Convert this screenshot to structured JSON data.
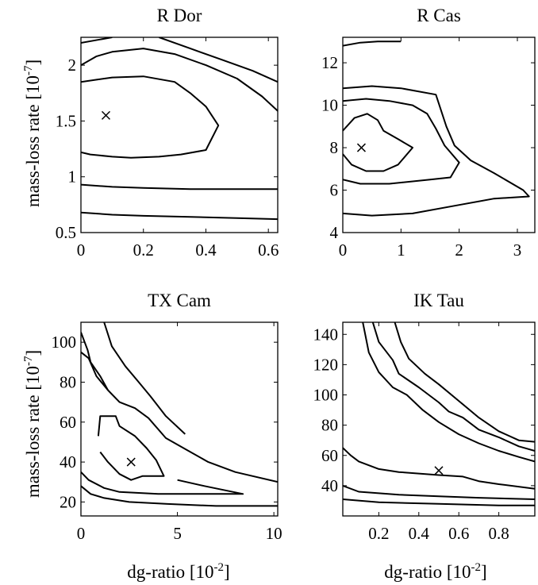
{
  "figure": {
    "ylabel_text": "mass-loss rate [10",
    "ylabel_exp": "-7",
    "ylabel_close": "]",
    "xlabel_text": "dg-ratio [10",
    "xlabel_exp": "-2",
    "xlabel_close": "]"
  },
  "chart_data": [
    {
      "type": "contour",
      "title": "R Dor",
      "xlim": [
        0,
        0.63
      ],
      "ylim": [
        0.5,
        2.25
      ],
      "xticks": [
        0,
        0.2,
        0.4,
        0.6
      ],
      "xtick_labels": [
        "0",
        "0.2",
        "0.4",
        "0.6"
      ],
      "yticks": [
        0.5,
        1,
        1.5,
        2
      ],
      "ytick_labels": [
        "0.5",
        "1",
        "1.5",
        "2"
      ],
      "best_fit": {
        "x": 0.08,
        "y": 1.55
      },
      "contours": [
        [
          [
            0.0,
            1.22
          ],
          [
            0.03,
            1.2
          ],
          [
            0.1,
            1.18
          ],
          [
            0.16,
            1.17
          ],
          [
            0.25,
            1.18
          ],
          [
            0.32,
            1.2
          ],
          [
            0.4,
            1.24
          ],
          [
            0.44,
            1.46
          ],
          [
            0.4,
            1.63
          ],
          [
            0.35,
            1.75
          ],
          [
            0.3,
            1.85
          ],
          [
            0.2,
            1.9
          ],
          [
            0.1,
            1.89
          ],
          [
            0.05,
            1.87
          ],
          [
            0.0,
            1.85
          ]
        ],
        [
          [
            0.0,
            2.0
          ],
          [
            0.05,
            2.08
          ],
          [
            0.1,
            2.12
          ],
          [
            0.2,
            2.15
          ],
          [
            0.3,
            2.1
          ],
          [
            0.4,
            2.0
          ],
          [
            0.5,
            1.88
          ],
          [
            0.58,
            1.72
          ],
          [
            0.63,
            1.59
          ]
        ],
        [
          [
            0.0,
            2.2
          ],
          [
            0.06,
            2.23
          ],
          [
            0.1,
            2.25
          ]
        ],
        [
          [
            0.25,
            2.25
          ],
          [
            0.35,
            2.15
          ],
          [
            0.45,
            2.05
          ],
          [
            0.55,
            1.95
          ],
          [
            0.63,
            1.85
          ]
        ],
        [
          [
            0.0,
            0.93
          ],
          [
            0.1,
            0.91
          ],
          [
            0.2,
            0.9
          ],
          [
            0.35,
            0.89
          ],
          [
            0.5,
            0.89
          ],
          [
            0.63,
            0.89
          ]
        ],
        [
          [
            0.0,
            0.68
          ],
          [
            0.1,
            0.66
          ],
          [
            0.2,
            0.65
          ],
          [
            0.35,
            0.64
          ],
          [
            0.5,
            0.63
          ],
          [
            0.63,
            0.62
          ]
        ]
      ]
    },
    {
      "type": "contour",
      "title": "R Cas",
      "xlim": [
        0,
        3.3
      ],
      "ylim": [
        4,
        13.2
      ],
      "xticks": [
        0,
        1,
        2,
        3
      ],
      "xtick_labels": [
        "0",
        "1",
        "2",
        "3"
      ],
      "yticks": [
        4,
        6,
        8,
        10,
        12
      ],
      "ytick_labels": [
        "4",
        "6",
        "8",
        "10",
        "12"
      ],
      "best_fit": {
        "x": 0.32,
        "y": 8.0
      },
      "contours": [
        [
          [
            0.0,
            7.7
          ],
          [
            0.15,
            7.2
          ],
          [
            0.4,
            6.9
          ],
          [
            0.7,
            6.9
          ],
          [
            0.95,
            7.2
          ],
          [
            1.2,
            8.0
          ],
          [
            0.95,
            8.4
          ],
          [
            0.7,
            8.8
          ],
          [
            0.6,
            9.3
          ],
          [
            0.42,
            9.6
          ],
          [
            0.2,
            9.4
          ],
          [
            0.0,
            8.8
          ]
        ],
        [
          [
            0.0,
            6.5
          ],
          [
            0.3,
            6.3
          ],
          [
            0.8,
            6.3
          ],
          [
            1.5,
            6.5
          ],
          [
            1.85,
            6.6
          ],
          [
            2.0,
            7.3
          ],
          [
            1.75,
            8.1
          ],
          [
            1.6,
            8.9
          ],
          [
            1.45,
            9.6
          ],
          [
            1.2,
            10.0
          ],
          [
            0.8,
            10.2
          ],
          [
            0.4,
            10.3
          ],
          [
            0.0,
            10.2
          ]
        ],
        [
          [
            0.0,
            4.9
          ],
          [
            0.5,
            4.8
          ],
          [
            1.2,
            4.9
          ],
          [
            2.0,
            5.3
          ],
          [
            2.6,
            5.6
          ],
          [
            3.2,
            5.7
          ],
          [
            3.1,
            6.0
          ],
          [
            2.6,
            6.8
          ],
          [
            2.2,
            7.4
          ],
          [
            1.92,
            8.1
          ],
          [
            1.78,
            9.0
          ],
          [
            1.6,
            10.5
          ],
          [
            1.0,
            10.8
          ],
          [
            0.5,
            10.9
          ],
          [
            0.0,
            10.8
          ]
        ],
        [
          [
            0.0,
            12.8
          ],
          [
            0.3,
            12.95
          ],
          [
            0.6,
            13.0
          ],
          [
            1.0,
            13.0
          ]
        ]
      ]
    },
    {
      "type": "contour",
      "title": "TX Cam",
      "xlim": [
        0,
        10.2
      ],
      "ylim": [
        13,
        110
      ],
      "xticks": [
        0,
        5,
        10
      ],
      "xtick_labels": [
        "0",
        "5",
        "10"
      ],
      "yticks": [
        20,
        40,
        60,
        80,
        100
      ],
      "ytick_labels": [
        "20",
        "40",
        "60",
        "80",
        "100"
      ],
      "best_fit": {
        "x": 2.6,
        "y": 40
      },
      "contours": [
        [
          [
            0.9,
            53
          ],
          [
            1.0,
            63
          ],
          [
            1.8,
            63
          ],
          [
            2.0,
            58
          ],
          [
            2.8,
            53
          ],
          [
            3.4,
            47
          ],
          [
            3.9,
            41
          ],
          [
            4.3,
            33
          ],
          [
            3.2,
            33
          ],
          [
            2.6,
            31
          ],
          [
            2.0,
            34
          ],
          [
            1.4,
            40
          ],
          [
            1.0,
            45
          ]
        ],
        [
          [
            0.0,
            95
          ],
          [
            0.4,
            92
          ],
          [
            0.8,
            83
          ],
          [
            1.4,
            76
          ],
          [
            2.0,
            70
          ],
          [
            2.8,
            67
          ],
          [
            3.5,
            62
          ],
          [
            4.4,
            52
          ],
          [
            5.5,
            46
          ],
          [
            6.6,
            40
          ],
          [
            8.0,
            35
          ],
          [
            10.2,
            30
          ]
        ],
        [
          [
            0.0,
            105
          ],
          [
            0.35,
            96
          ],
          [
            0.5,
            90
          ],
          [
            1.0,
            83
          ],
          [
            1.4,
            76
          ]
        ],
        [
          [
            1.2,
            110
          ],
          [
            1.6,
            98
          ],
          [
            2.3,
            88
          ],
          [
            3.0,
            80
          ],
          [
            3.6,
            73
          ],
          [
            4.4,
            63
          ],
          [
            5.4,
            54
          ]
        ],
        [
          [
            0.0,
            35
          ],
          [
            0.4,
            31
          ],
          [
            1.2,
            27
          ],
          [
            2.0,
            25
          ],
          [
            4.0,
            24
          ],
          [
            8.4,
            24
          ],
          [
            6.4,
            28
          ],
          [
            5.0,
            31
          ]
        ],
        [
          [
            0.0,
            28
          ],
          [
            0.5,
            24
          ],
          [
            1.2,
            22
          ],
          [
            2.5,
            20
          ],
          [
            4.5,
            19
          ],
          [
            7.0,
            18
          ],
          [
            10.2,
            18
          ]
        ]
      ]
    },
    {
      "type": "contour",
      "title": "IK Tau",
      "xlim": [
        0.02,
        0.98
      ],
      "ylim": [
        20,
        148
      ],
      "xticks": [
        0.2,
        0.4,
        0.6,
        0.8
      ],
      "xtick_labels": [
        "0.2",
        "0.4",
        "0.6",
        "0.8"
      ],
      "yticks": [
        40,
        60,
        80,
        100,
        120,
        140
      ],
      "ytick_labels": [
        "40",
        "60",
        "80",
        "100",
        "120",
        "140"
      ],
      "best_fit": {
        "x": 0.5,
        "y": 50
      },
      "contours": [
        [
          [
            0.12,
            148
          ],
          [
            0.15,
            128
          ],
          [
            0.2,
            115
          ],
          [
            0.27,
            105
          ],
          [
            0.34,
            100
          ],
          [
            0.42,
            90
          ],
          [
            0.5,
            82
          ],
          [
            0.6,
            74
          ],
          [
            0.7,
            68
          ],
          [
            0.8,
            63
          ],
          [
            0.9,
            59
          ],
          [
            0.98,
            56
          ]
        ],
        [
          [
            0.17,
            148
          ],
          [
            0.2,
            135
          ],
          [
            0.27,
            123
          ],
          [
            0.3,
            114
          ],
          [
            0.4,
            105
          ],
          [
            0.5,
            95
          ],
          [
            0.55,
            89
          ],
          [
            0.62,
            85
          ],
          [
            0.7,
            77
          ],
          [
            0.8,
            72
          ],
          [
            0.9,
            66
          ],
          [
            0.98,
            63
          ]
        ],
        [
          [
            0.28,
            148
          ],
          [
            0.31,
            135
          ],
          [
            0.35,
            124
          ],
          [
            0.43,
            114
          ],
          [
            0.5,
            107
          ],
          [
            0.6,
            96
          ],
          [
            0.7,
            85
          ],
          [
            0.8,
            76
          ],
          [
            0.9,
            70
          ],
          [
            0.98,
            69
          ]
        ],
        [
          [
            0.02,
            65
          ],
          [
            0.06,
            60
          ],
          [
            0.1,
            56
          ],
          [
            0.2,
            51
          ],
          [
            0.3,
            49
          ],
          [
            0.5,
            47
          ],
          [
            0.62,
            46
          ],
          [
            0.7,
            43
          ],
          [
            0.8,
            41
          ],
          [
            0.98,
            38
          ]
        ],
        [
          [
            0.02,
            40
          ],
          [
            0.1,
            36
          ],
          [
            0.3,
            34
          ],
          [
            0.5,
            33
          ],
          [
            0.7,
            32
          ],
          [
            0.98,
            31
          ]
        ],
        [
          [
            0.02,
            31
          ],
          [
            0.2,
            29
          ],
          [
            0.5,
            28
          ],
          [
            0.8,
            27
          ],
          [
            0.98,
            27
          ]
        ]
      ]
    }
  ]
}
